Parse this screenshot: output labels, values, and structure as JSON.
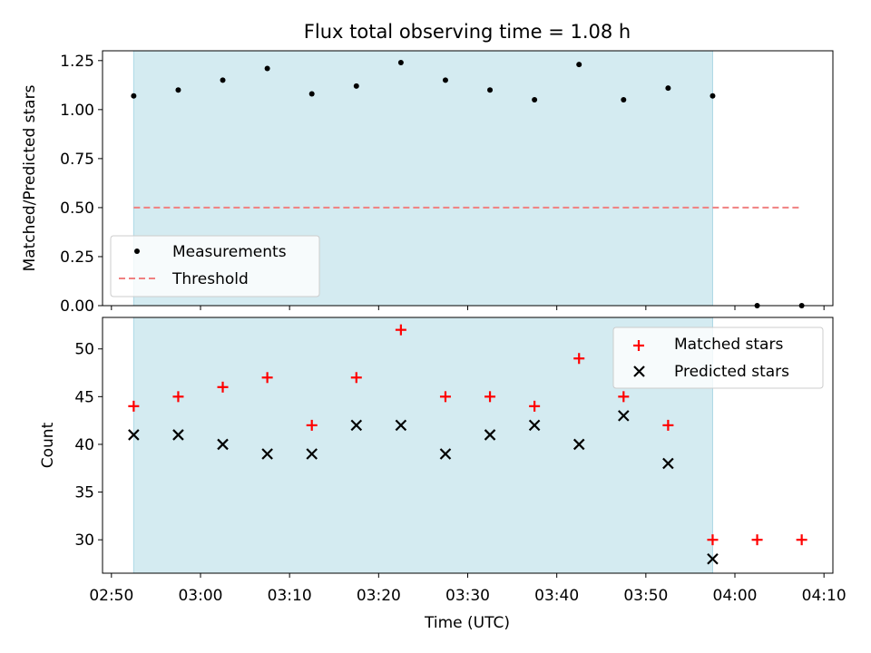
{
  "title": "Flux total observing time = 1.08 h",
  "chart_data": [
    {
      "type": "scatter",
      "ylabel": "Matched/Predicted stars",
      "xlabel": "",
      "xlim": [
        "02:49",
        "04:11"
      ],
      "ylim": [
        0,
        1.3
      ],
      "yticks": [
        "0.00",
        "0.25",
        "0.50",
        "0.75",
        "1.00",
        "1.25"
      ],
      "shaded_interval": [
        "02:52:30",
        "03:57:30"
      ],
      "shade_color": "#d4ebf1",
      "legend_position": "lower-left",
      "series": [
        {
          "name": "Measurements",
          "marker": "dot",
          "color": "#000000",
          "x": [
            "02:52:30",
            "02:57:30",
            "03:02:30",
            "03:07:30",
            "03:12:30",
            "03:17:30",
            "03:22:30",
            "03:27:30",
            "03:32:30",
            "03:37:30",
            "03:42:30",
            "03:47:30",
            "03:52:30",
            "03:57:30",
            "04:02:30",
            "04:07:30"
          ],
          "y": [
            1.07,
            1.1,
            1.15,
            1.21,
            1.08,
            1.12,
            1.24,
            1.15,
            1.1,
            1.05,
            1.23,
            1.05,
            1.11,
            1.07,
            0.0,
            0.0
          ]
        },
        {
          "name": "Threshold",
          "marker": "dashed-line",
          "color": "#f08080",
          "x": [
            "02:52:30",
            "04:07:30"
          ],
          "y": [
            0.5,
            0.5
          ]
        }
      ]
    },
    {
      "type": "scatter",
      "ylabel": "Count",
      "xlabel": "Time (UTC)",
      "xlim": [
        "02:49",
        "04:11"
      ],
      "ylim": [
        26.5,
        53.3
      ],
      "yticks": [
        "30",
        "35",
        "40",
        "45",
        "50"
      ],
      "xticks": [
        "02:50",
        "03:00",
        "03:10",
        "03:20",
        "03:30",
        "03:40",
        "03:50",
        "04:00",
        "04:10"
      ],
      "shaded_interval": [
        "02:52:30",
        "03:57:30"
      ],
      "shade_color": "#d4ebf1",
      "legend_position": "top-right",
      "series": [
        {
          "name": "Matched stars",
          "marker": "plus",
          "color": "#ff0000",
          "x": [
            "02:52:30",
            "02:57:30",
            "03:02:30",
            "03:07:30",
            "03:12:30",
            "03:17:30",
            "03:22:30",
            "03:27:30",
            "03:32:30",
            "03:37:30",
            "03:42:30",
            "03:47:30",
            "03:52:30",
            "03:57:30",
            "04:02:30",
            "04:07:30"
          ],
          "y": [
            44,
            45,
            46,
            47,
            42,
            47,
            52,
            45,
            45,
            44,
            49,
            45,
            42,
            30,
            30,
            30
          ]
        },
        {
          "name": "Predicted stars",
          "marker": "x",
          "color": "#000000",
          "x": [
            "02:52:30",
            "02:57:30",
            "03:02:30",
            "03:07:30",
            "03:12:30",
            "03:17:30",
            "03:22:30",
            "03:27:30",
            "03:32:30",
            "03:37:30",
            "03:42:30",
            "03:47:30",
            "03:52:30",
            "03:57:30"
          ],
          "y": [
            41,
            41,
            40,
            39,
            39,
            42,
            42,
            39,
            41,
            42,
            40,
            43,
            38,
            28
          ]
        }
      ]
    }
  ]
}
